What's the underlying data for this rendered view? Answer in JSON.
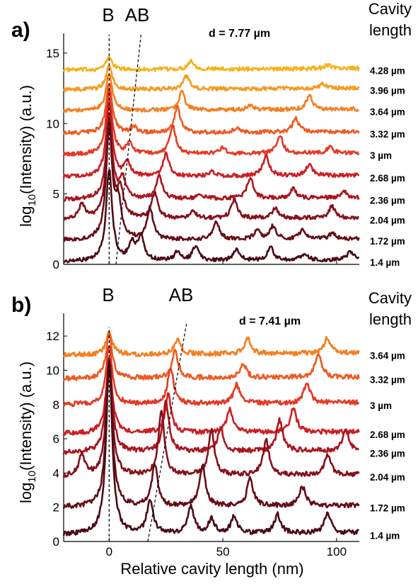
{
  "chart_data": [
    {
      "panel": "a)",
      "type": "line",
      "annotation": "d = 7.77 µm",
      "header": [
        "Cavity",
        "length"
      ],
      "markers": [
        "B",
        "AB"
      ],
      "ylabel": "log₁₀(Intensity) (a.u.)",
      "xlim": [
        -20,
        110
      ],
      "ylim": [
        0,
        16
      ],
      "yticks": [
        0,
        5,
        10,
        15
      ],
      "series": [
        {
          "name": "4.28 µm",
          "color": "#F5B21C",
          "baseline": 13.8,
          "peaks": [
            [
              0,
              0.9
            ],
            [
              36,
              0.6
            ],
            [
              96,
              0.25
            ]
          ]
        },
        {
          "name": "3.96 µm",
          "color": "#F59A1E",
          "baseline": 12.4,
          "peaks": [
            [
              0,
              1.7
            ],
            [
              34,
              0.9
            ],
            [
              94,
              0.3
            ]
          ]
        },
        {
          "name": "3.64 µm",
          "color": "#F47F20",
          "baseline": 10.9,
          "peaks": [
            [
              0,
              2.6
            ],
            [
              32,
              1.3
            ],
            [
              62,
              0.3
            ],
            [
              88,
              1.0
            ]
          ]
        },
        {
          "name": "3.32 µm",
          "color": "#EE5A22",
          "baseline": 9.3,
          "peaks": [
            [
              0,
              3.5
            ],
            [
              11,
              0.4
            ],
            [
              30,
              1.8
            ],
            [
              56,
              0.3
            ],
            [
              82,
              1.0
            ]
          ]
        },
        {
          "name": "3 µm",
          "color": "#E43A24",
          "baseline": 7.8,
          "peaks": [
            [
              0,
              4.4
            ],
            [
              9,
              0.7
            ],
            [
              28,
              1.9
            ],
            [
              50,
              0.4
            ],
            [
              75,
              1.3
            ],
            [
              97,
              0.4
            ]
          ]
        },
        {
          "name": "2.68 µm",
          "color": "#CC1F22",
          "baseline": 6.2,
          "peaks": [
            [
              0,
              5.2
            ],
            [
              8,
              1.0
            ],
            [
              25,
              1.6
            ],
            [
              45,
              0.3
            ],
            [
              69,
              1.5
            ],
            [
              88,
              0.8
            ]
          ]
        },
        {
          "name": "2.36 µm",
          "color": "#A9161F",
          "baseline": 4.6,
          "peaks": [
            [
              0,
              6.0
            ],
            [
              6,
              1.4
            ],
            [
              22,
              1.6
            ],
            [
              40,
              0.3
            ],
            [
              62,
              1.5
            ],
            [
              81,
              0.7
            ],
            [
              103,
              0.5
            ]
          ]
        },
        {
          "name": "2.04 µm",
          "color": "#86111C",
          "baseline": 3.2,
          "peaks": [
            [
              -12,
              1.0
            ],
            [
              0,
              6.8
            ],
            [
              5,
              2.0
            ],
            [
              20,
              1.8
            ],
            [
              37,
              0.5
            ],
            [
              55,
              1.3
            ],
            [
              73,
              0.7
            ],
            [
              98,
              0.8
            ]
          ]
        },
        {
          "name": "1.72 µm",
          "color": "#650E18",
          "baseline": 1.7,
          "peaks": [
            [
              0,
              7.8
            ],
            [
              4,
              2.5
            ],
            [
              18,
              2.2
            ],
            [
              47,
              1.3
            ],
            [
              65,
              0.6
            ],
            [
              72,
              0.9
            ],
            [
              85,
              0.6
            ],
            [
              98,
              0.4
            ]
          ]
        },
        {
          "name": "1.4 µm",
          "color": "#4A0C14",
          "baseline": 0.2,
          "peaks": [
            [
              0,
              6.5
            ],
            [
              10,
              1.2
            ],
            [
              14,
              1.8
            ],
            [
              30,
              0.6
            ],
            [
              38,
              1.0
            ],
            [
              56,
              0.8
            ],
            [
              71,
              0.9
            ],
            [
              86,
              0.5
            ],
            [
              106,
              0.6
            ]
          ]
        }
      ]
    },
    {
      "panel": "b)",
      "type": "line",
      "annotation": "d = 7.41 µm",
      "header": [
        "Cavity",
        "length"
      ],
      "markers": [
        "B",
        "AB"
      ],
      "ylabel": "log₁₀(Intensity) (a.u.)",
      "xlabel": "Relative cavity length (nm)",
      "xlim": [
        -20,
        110
      ],
      "ylim": [
        0,
        13
      ],
      "yticks": [
        0,
        2,
        4,
        6,
        8,
        10,
        12
      ],
      "xticks": [
        0,
        50,
        100
      ],
      "series": [
        {
          "name": "3.64 µm",
          "color": "#F47F20",
          "baseline": 10.9,
          "peaks": [
            [
              0,
              1.3
            ],
            [
              30,
              0.9
            ],
            [
              61,
              0.9
            ],
            [
              96,
              0.9
            ]
          ]
        },
        {
          "name": "3.32 µm",
          "color": "#EE5A22",
          "baseline": 9.5,
          "peaks": [
            [
              0,
              2.6
            ],
            [
              29,
              1.6
            ],
            [
              59,
              0.8
            ],
            [
              92,
              1.4
            ]
          ]
        },
        {
          "name": "3 µm",
          "color": "#E43A24",
          "baseline": 8.0,
          "peaks": [
            [
              0,
              3.4
            ],
            [
              27,
              2.1
            ],
            [
              56,
              1.1
            ],
            [
              87,
              1.2
            ]
          ]
        },
        {
          "name": "2.68 µm",
          "color": "#CC1F22",
          "baseline": 6.3,
          "peaks": [
            [
              0,
              4.3
            ],
            [
              26,
              2.2
            ],
            [
              53,
              1.4
            ],
            [
              81,
              1.4
            ]
          ]
        },
        {
          "name": "2.36 µm",
          "color": "#A9161F",
          "baseline": 5.2,
          "peaks": [
            [
              0,
              5.6
            ],
            [
              25,
              2.9
            ],
            [
              49,
              1.3
            ],
            [
              75,
              1.8
            ],
            [
              104,
              1.2
            ]
          ]
        },
        {
          "name": "2.04 µm",
          "color": "#86111C",
          "baseline": 3.8,
          "peaks": [
            [
              -12,
              1.2
            ],
            [
              0,
              6.7
            ],
            [
              23,
              3.7
            ],
            [
              45,
              2.6
            ],
            [
              69,
              2.0
            ],
            [
              96,
              1.2
            ]
          ]
        },
        {
          "name": "1.72 µm",
          "color": "#650E18",
          "baseline": 2.0,
          "peaks": [
            [
              0,
              8.3
            ],
            [
              20,
              2.4
            ],
            [
              41,
              2.4
            ],
            [
              62,
              1.6
            ],
            [
              85,
              1.1
            ]
          ]
        },
        {
          "name": "1.4 µm",
          "color": "#4A0C14",
          "baseline": 0.4,
          "peaks": [
            [
              0,
              10.0
            ],
            [
              18,
              2.0
            ],
            [
              36,
              1.6
            ],
            [
              45,
              0.8
            ],
            [
              55,
              1.0
            ],
            [
              74,
              1.1
            ],
            [
              96,
              1.2
            ]
          ]
        }
      ],
      "guide_B": [
        [
          0,
          0
        ],
        [
          0,
          12.5
        ]
      ],
      "guide_AB": [
        [
          17,
          0
        ],
        [
          34,
          12.7
        ]
      ]
    }
  ],
  "panel_a_guides": {
    "guide_B": [
      [
        0,
        0
      ],
      [
        0,
        16.3
      ]
    ],
    "guide_AB": [
      [
        3,
        0
      ],
      [
        14,
        16.3
      ]
    ]
  }
}
